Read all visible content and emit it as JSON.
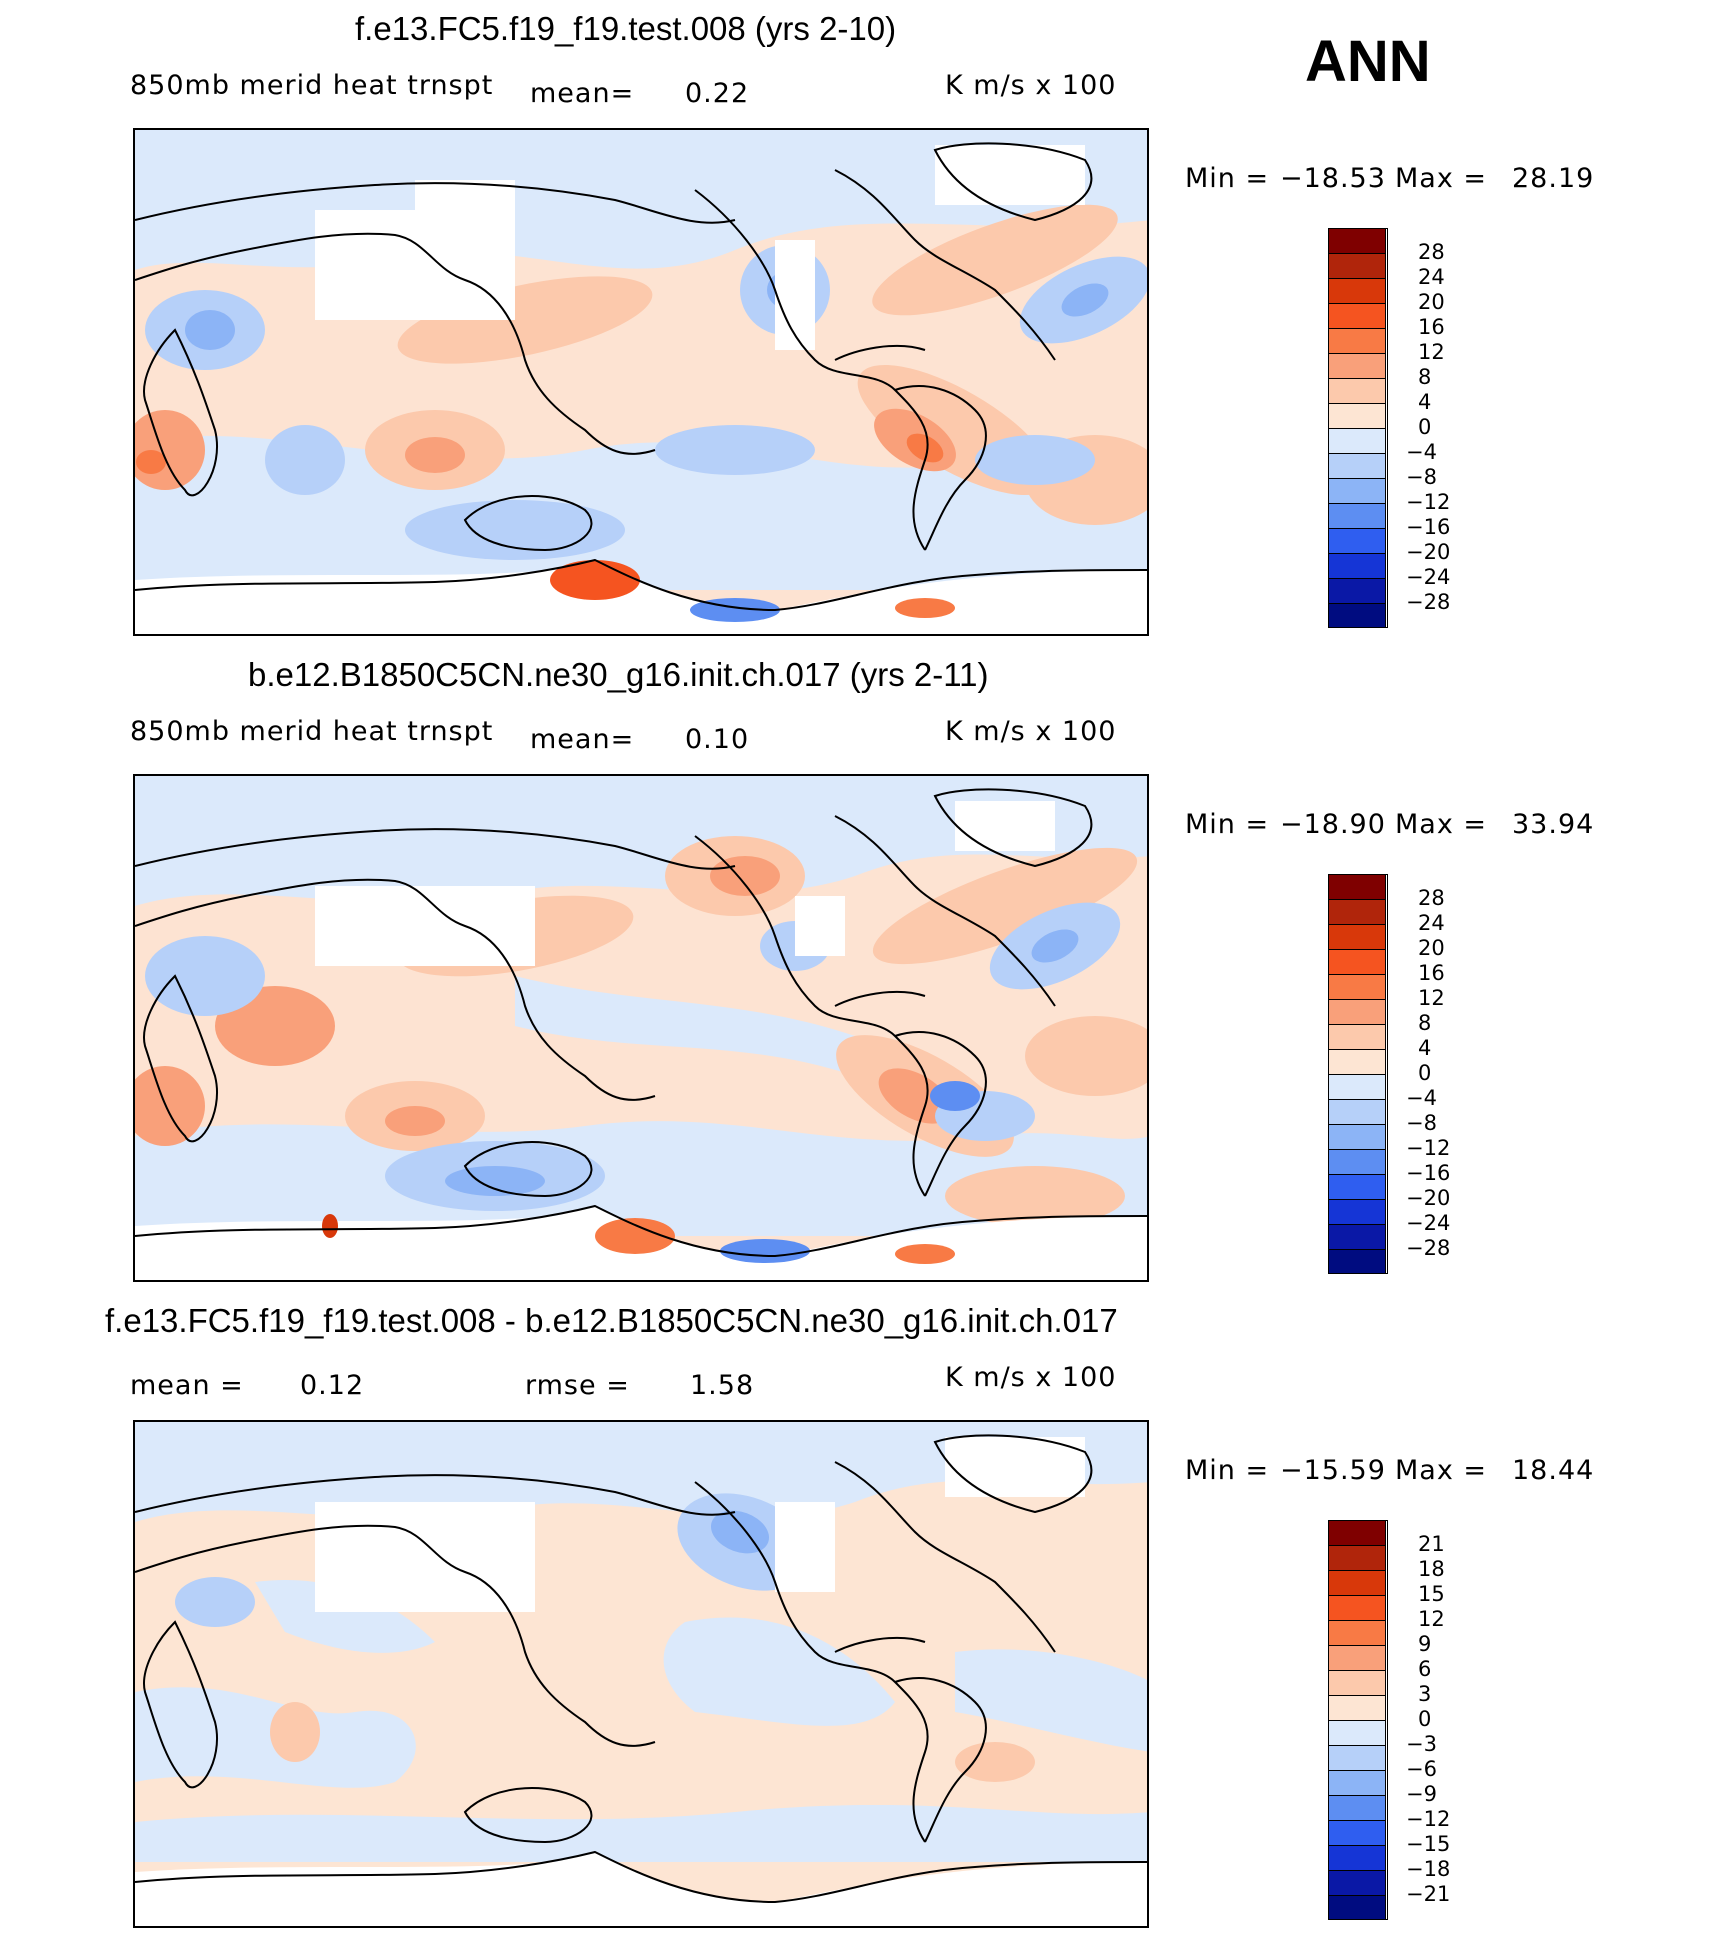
{
  "season": "ANN",
  "panels": [
    {
      "title": "f.e13.FC5.f19_f19.test.008 (yrs 2-10)",
      "variable": "850mb merid heat trnspt",
      "mean_label": "mean=",
      "mean_value": "0.22",
      "rmse_label": "",
      "rmse_value": "",
      "units": "K m/s x 100",
      "min_label": "Min =",
      "min_value": "−18.53",
      "max_label": "Max =",
      "max_value": "28.19",
      "colorbar_labels": [
        "28",
        "24",
        "20",
        "16",
        "12",
        "8",
        "4",
        "0",
        "−4",
        "−8",
        "−12",
        "−16",
        "−20",
        "−24",
        "−28"
      ]
    },
    {
      "title": "b.e12.B1850C5CN.ne30_g16.init.ch.017 (yrs 2-11)",
      "variable": "850mb merid heat trnspt",
      "mean_label": "mean=",
      "mean_value": "0.10",
      "rmse_label": "",
      "rmse_value": "",
      "units": "K m/s x 100",
      "min_label": "Min =",
      "min_value": "−18.90",
      "max_label": "Max =",
      "max_value": "33.94",
      "colorbar_labels": [
        "28",
        "24",
        "20",
        "16",
        "12",
        "8",
        "4",
        "0",
        "−4",
        "−8",
        "−12",
        "−16",
        "−20",
        "−24",
        "−28"
      ]
    },
    {
      "title": "f.e13.FC5.f19_f19.test.008 - b.e12.B1850C5CN.ne30_g16.init.ch.017",
      "variable": "",
      "mean_label": "mean =",
      "mean_value": "0.12",
      "rmse_label": "rmse =",
      "rmse_value": "1.58",
      "units": "K m/s x 100",
      "min_label": "Min =",
      "min_value": "−15.59",
      "max_label": "Max =",
      "max_value": "18.44",
      "colorbar_labels": [
        "21",
        "18",
        "15",
        "12",
        "9",
        "6",
        "3",
        "0",
        "−3",
        "−6",
        "−9",
        "−12",
        "−15",
        "−18",
        "−21"
      ]
    }
  ],
  "colorbar_colors": [
    "#7f0000",
    "#b0250b",
    "#d8380a",
    "#f55420",
    "#f87a45",
    "#f9a07a",
    "#fcc9ac",
    "#fde5d3",
    "#dbe9fb",
    "#b6d0f9",
    "#8cb4f6",
    "#5d8ef2",
    "#2f5ef0",
    "#1535d6",
    "#0a18a6",
    "#000c80"
  ]
}
